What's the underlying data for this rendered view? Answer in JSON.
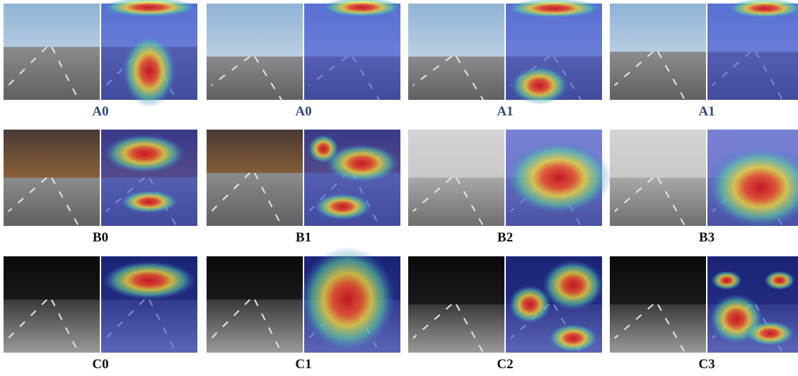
{
  "figure": {
    "panels": [
      {
        "label": "A0"
      },
      {
        "label": "A0"
      },
      {
        "label": "A1"
      },
      {
        "label": "A1"
      },
      {
        "label": "B0"
      },
      {
        "label": "B1"
      },
      {
        "label": "B2"
      },
      {
        "label": "B3"
      },
      {
        "label": "C0"
      },
      {
        "label": "C1"
      },
      {
        "label": "C2"
      },
      {
        "label": "C3"
      }
    ]
  }
}
